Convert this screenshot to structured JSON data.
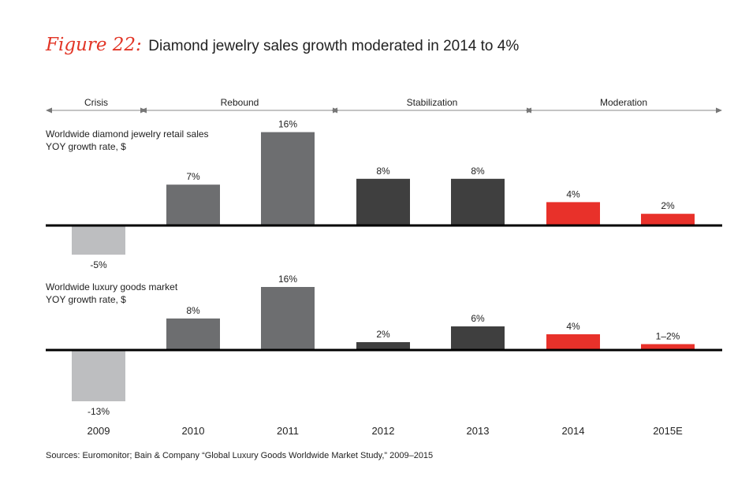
{
  "figure_label": "Figure 22:",
  "figure_title": "Diamond jewelry sales growth moderated in 2014 to 4%",
  "source_note": "Sources: Euromonitor; Bain & Company “Global Luxury Goods Worldwide Market Study,” 2009–2015",
  "colors": {
    "crisis": "#bdbec0",
    "rebound": "#6d6e70",
    "stabilization": "#3f3f3f",
    "moderation": "#e8312a",
    "axis": "#000000",
    "text": "#222222"
  },
  "chart_data": {
    "type": "bar",
    "categories": [
      "2009",
      "2010",
      "2011",
      "2012",
      "2013",
      "2014",
      "2015E"
    ],
    "phases": [
      {
        "name": "Crisis",
        "categories": [
          "2009"
        ]
      },
      {
        "name": "Rebound",
        "categories": [
          "2010",
          "2011"
        ]
      },
      {
        "name": "Stabilization",
        "categories": [
          "2012",
          "2013"
        ]
      },
      {
        "name": "Moderation",
        "categories": [
          "2014",
          "2015E"
        ]
      }
    ],
    "panels": [
      {
        "title_line1": "Worldwide diamond jewelry retail sales",
        "title_line2": "YOY growth rate, $",
        "values": [
          -5,
          7,
          16,
          8,
          8,
          4,
          2
        ],
        "labels": [
          "-5%",
          "7%",
          "16%",
          "8%",
          "8%",
          "4%",
          "2%"
        ]
      },
      {
        "title_line1": "Worldwide luxury goods market",
        "title_line2": "YOY growth rate, $",
        "values": [
          -13,
          8,
          16,
          2,
          6,
          4,
          1.5
        ],
        "labels": [
          "-13%",
          "8%",
          "16%",
          "2%",
          "6%",
          "4%",
          "1–2%"
        ]
      }
    ]
  }
}
